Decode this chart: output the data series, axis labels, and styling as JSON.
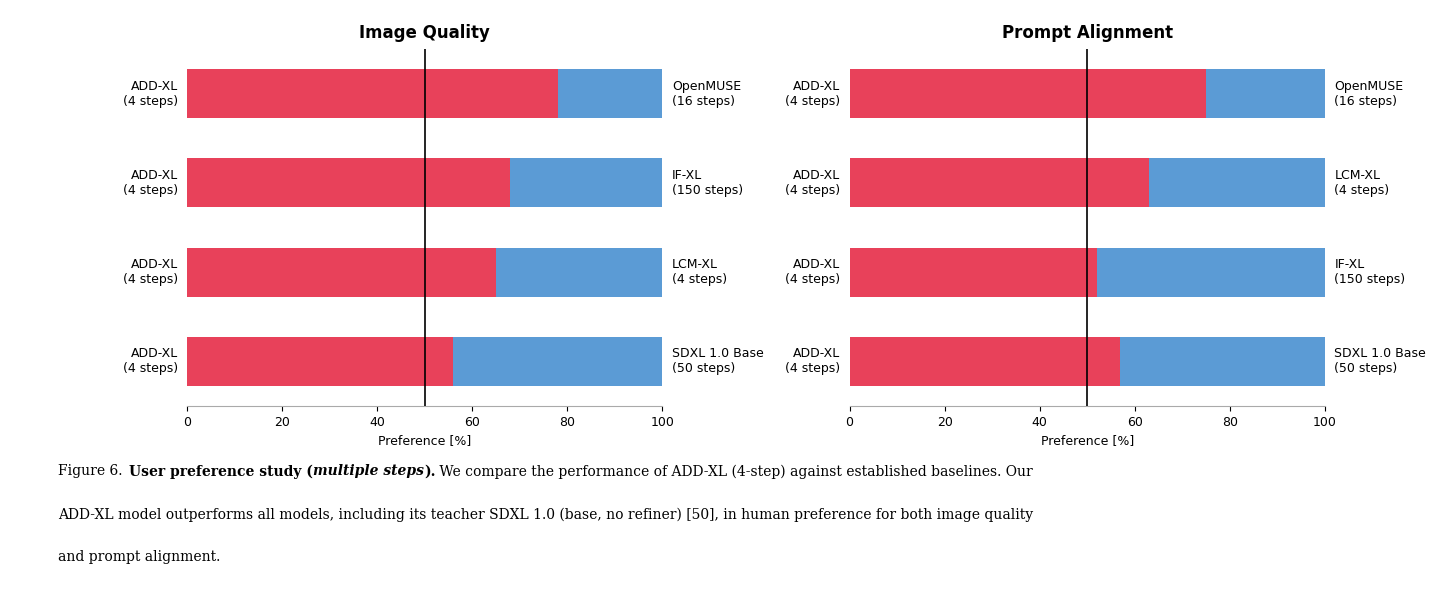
{
  "image_quality": {
    "title": "Image Quality",
    "rows": [
      {
        "left_label": "ADD-XL\n(4 steps)",
        "right_label": "OpenMUSE\n(16 steps)",
        "red": 78,
        "blue": 22
      },
      {
        "left_label": "ADD-XL\n(4 steps)",
        "right_label": "IF-XL\n(150 steps)",
        "red": 68,
        "blue": 32
      },
      {
        "left_label": "ADD-XL\n(4 steps)",
        "right_label": "LCM-XL\n(4 steps)",
        "red": 65,
        "blue": 35
      },
      {
        "left_label": "ADD-XL\n(4 steps)",
        "right_label": "SDXL 1.0 Base\n(50 steps)",
        "red": 56,
        "blue": 44
      }
    ]
  },
  "prompt_alignment": {
    "title": "Prompt Alignment",
    "rows": [
      {
        "left_label": "ADD-XL\n(4 steps)",
        "right_label": "OpenMUSE\n(16 steps)",
        "red": 75,
        "blue": 25
      },
      {
        "left_label": "ADD-XL\n(4 steps)",
        "right_label": "LCM-XL\n(4 steps)",
        "red": 63,
        "blue": 37
      },
      {
        "left_label": "ADD-XL\n(4 steps)",
        "right_label": "IF-XL\n(150 steps)",
        "red": 52,
        "blue": 48
      },
      {
        "left_label": "ADD-XL\n(4 steps)",
        "right_label": "SDXL 1.0 Base\n(50 steps)",
        "red": 57,
        "blue": 43
      }
    ]
  },
  "red_color": "#E8415A",
  "blue_color": "#5B9BD5",
  "xlabel": "Preference [%]",
  "xlim": [
    0,
    100
  ],
  "xticks": [
    0,
    20,
    40,
    60,
    80,
    100
  ],
  "vline_x": 50,
  "bar_height": 0.55,
  "label_fontsize": 9,
  "title_fontsize": 12,
  "xlabel_fontsize": 9,
  "caption_fontsize": 10
}
